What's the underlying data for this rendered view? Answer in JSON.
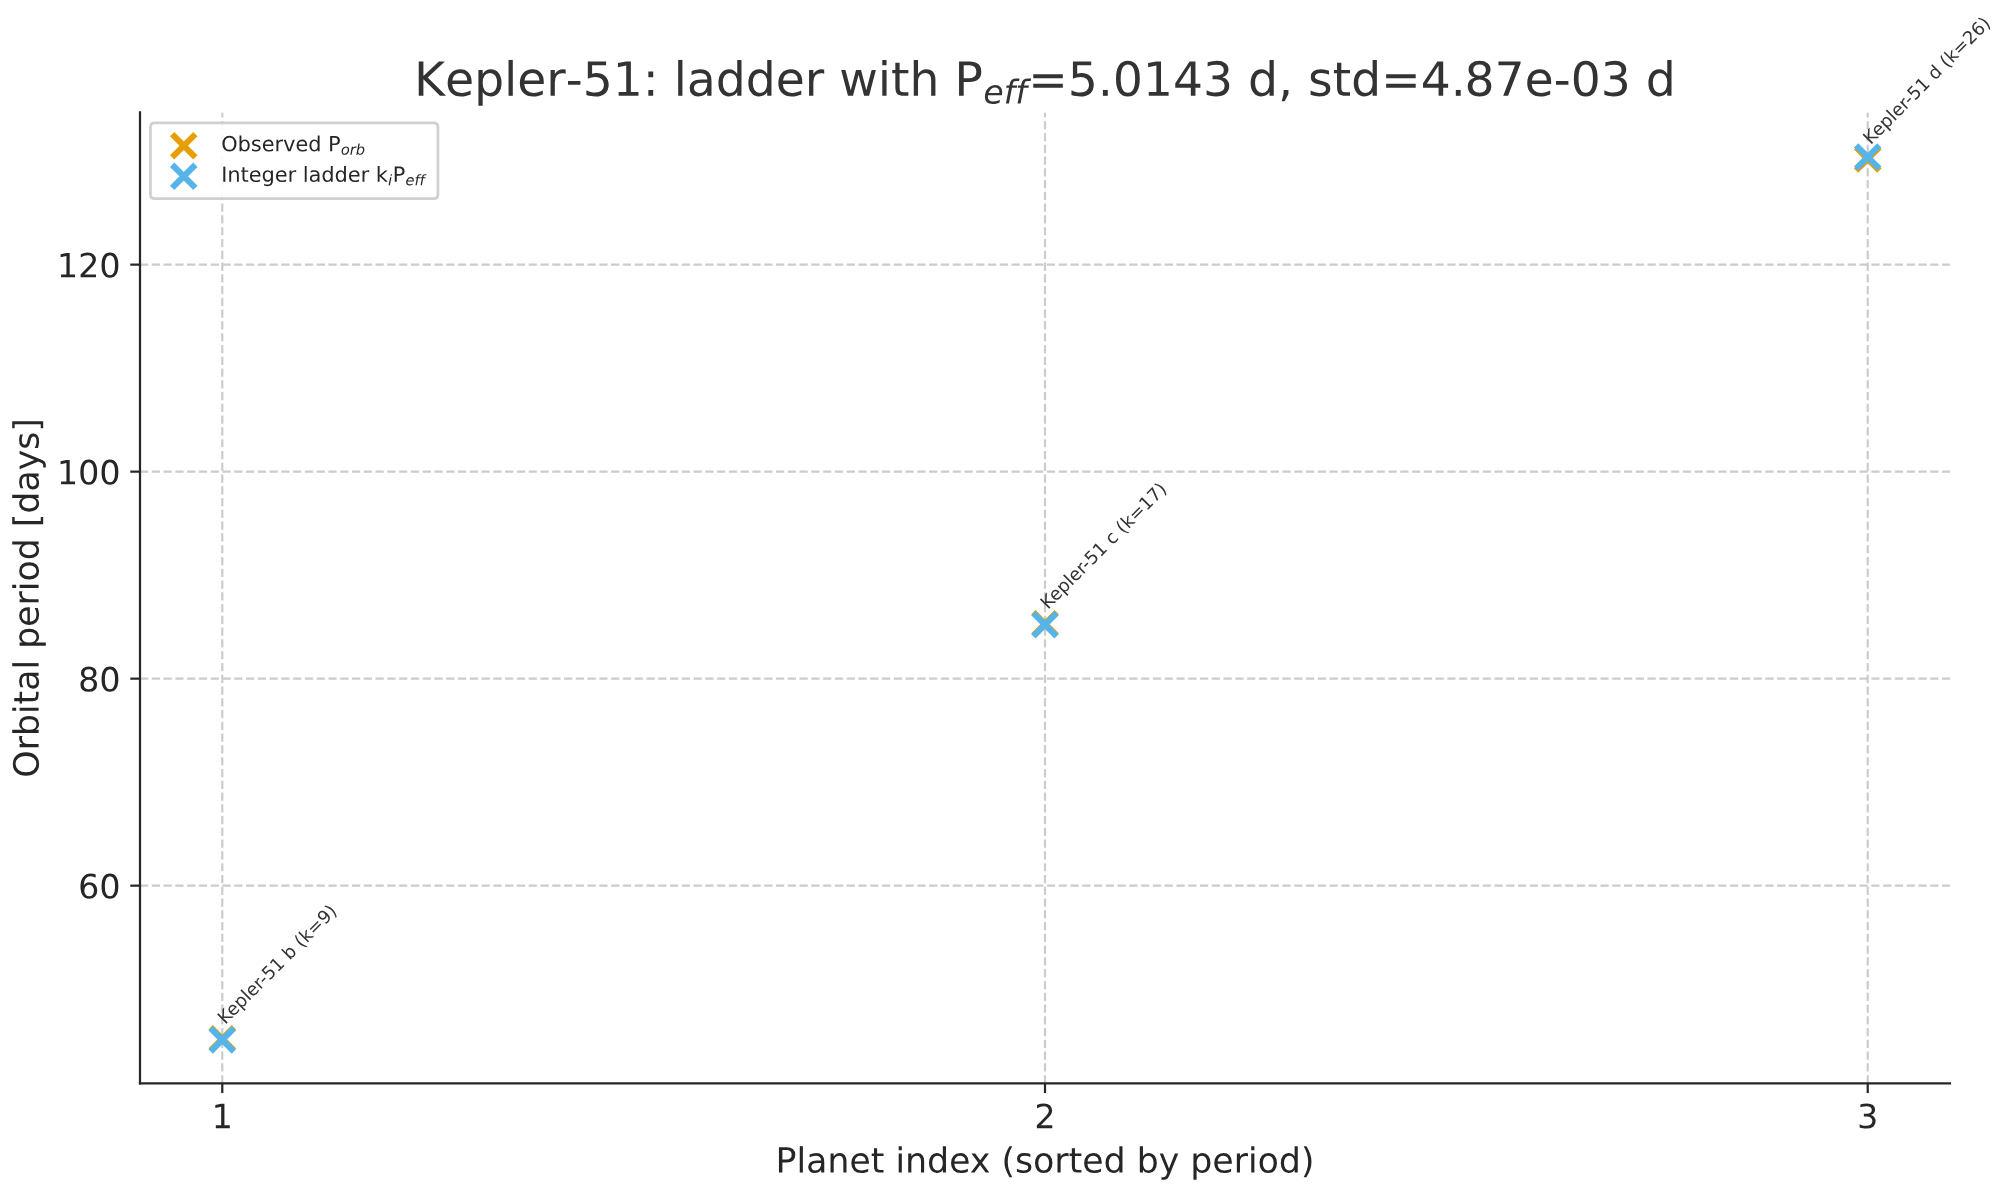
{
  "chart_data": {
    "type": "scatter",
    "title": "Kepler-51: ladder with P$_{eff}$=5.0143 d, std=4.87e-03 d",
    "xlabel": "Planet index (sorted by period)",
    "ylabel": "Orbital period [days]",
    "x": [
      1,
      2,
      3
    ],
    "series": [
      {
        "name": "Observed P$_{orb}$",
        "color": "#e69f00",
        "values": [
          45.2,
          85.3,
          130.2
        ]
      },
      {
        "name": "Integer ladder k$_{i}$P$_{eff}$",
        "color": "#56b4e9",
        "values": [
          45.1,
          85.2,
          130.4
        ]
      }
    ],
    "annotations": [
      {
        "text": "Kepler-51 b (k=9)",
        "x": 1,
        "y": 45.2
      },
      {
        "text": "Kepler-51 c (k=17)",
        "x": 2,
        "y": 85.3
      },
      {
        "text": "Kepler-51 d (k=26)",
        "x": 3,
        "y": 130.2
      }
    ],
    "xlim": [
      0.9,
      3.1
    ],
    "ylim": [
      40.9,
      134.7
    ],
    "xticks": [
      1,
      2,
      3
    ],
    "yticks": [
      60,
      80,
      100,
      120
    ],
    "marker": "cross",
    "grid": true,
    "legend": "top left"
  }
}
